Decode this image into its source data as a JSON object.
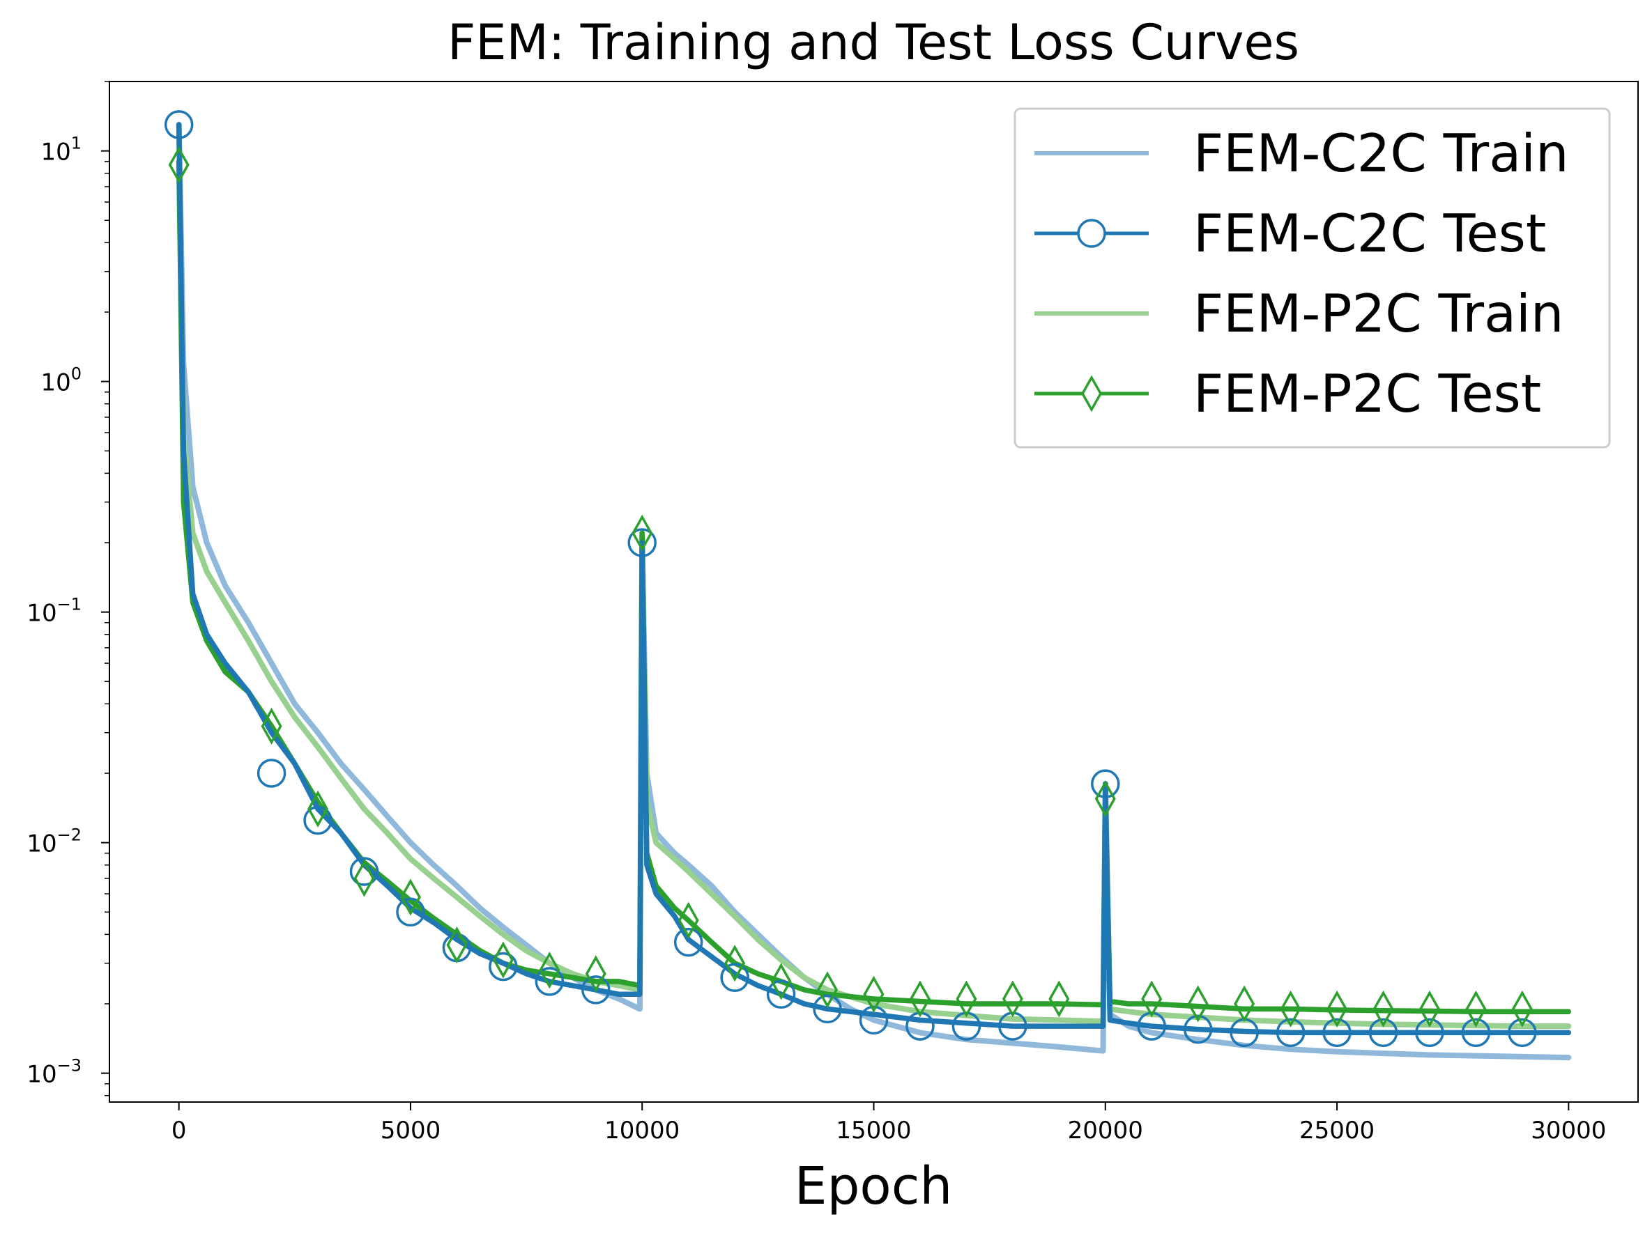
{
  "chart_data": {
    "type": "line",
    "title": "FEM: Training and Test Loss Curves",
    "xlabel": "Epoch",
    "ylabel": "",
    "xlim": [
      -1500,
      31500
    ],
    "ylim": [
      0.00075,
      20
    ],
    "yscale": "log",
    "x_ticks": [
      0,
      5000,
      10000,
      15000,
      20000,
      25000,
      30000
    ],
    "x_tick_labels": [
      "0",
      "5000",
      "10000",
      "15000",
      "20000",
      "25000",
      "30000"
    ],
    "y_ticks": [
      {
        "value": 10,
        "base": "10",
        "exp": "1"
      },
      {
        "value": 1,
        "base": "10",
        "exp": "0"
      },
      {
        "value": 0.1,
        "base": "10",
        "exp": "−1"
      },
      {
        "value": 0.01,
        "base": "10",
        "exp": "−2"
      },
      {
        "value": 0.001,
        "base": "10",
        "exp": "−3"
      }
    ],
    "legend_position": "top-right",
    "series": [
      {
        "name": "FEM-C2C Train",
        "color": "#8fb8da",
        "marker": "none",
        "points": [
          [
            0,
            13
          ],
          [
            100,
            1.2
          ],
          [
            300,
            0.35
          ],
          [
            600,
            0.2
          ],
          [
            1000,
            0.13
          ],
          [
            1500,
            0.09
          ],
          [
            2000,
            0.06
          ],
          [
            2500,
            0.04
          ],
          [
            3000,
            0.03
          ],
          [
            3500,
            0.022
          ],
          [
            4000,
            0.017
          ],
          [
            4500,
            0.013
          ],
          [
            5000,
            0.01
          ],
          [
            5500,
            0.008
          ],
          [
            6000,
            0.0065
          ],
          [
            6500,
            0.0052
          ],
          [
            7000,
            0.0043
          ],
          [
            7500,
            0.0036
          ],
          [
            8000,
            0.003
          ],
          [
            8500,
            0.0026
          ],
          [
            9000,
            0.0023
          ],
          [
            9500,
            0.0021
          ],
          [
            9950,
            0.0019
          ],
          [
            10000,
            0.2
          ],
          [
            10100,
            0.02
          ],
          [
            10300,
            0.011
          ],
          [
            10700,
            0.009
          ],
          [
            11000,
            0.008
          ],
          [
            11500,
            0.0065
          ],
          [
            12000,
            0.005
          ],
          [
            12500,
            0.004
          ],
          [
            13000,
            0.0032
          ],
          [
            13500,
            0.0026
          ],
          [
            14000,
            0.0022
          ],
          [
            14500,
            0.0019
          ],
          [
            15000,
            0.0017
          ],
          [
            16000,
            0.0015
          ],
          [
            17000,
            0.0014
          ],
          [
            18000,
            0.00135
          ],
          [
            19000,
            0.0013
          ],
          [
            19950,
            0.00125
          ],
          [
            20000,
            0.018
          ],
          [
            20100,
            0.0018
          ],
          [
            20500,
            0.0016
          ],
          [
            21000,
            0.0015
          ],
          [
            22000,
            0.0014
          ],
          [
            23000,
            0.00132
          ],
          [
            24000,
            0.00127
          ],
          [
            25000,
            0.00124
          ],
          [
            26000,
            0.00122
          ],
          [
            27000,
            0.0012
          ],
          [
            28000,
            0.00119
          ],
          [
            29000,
            0.00118
          ],
          [
            30000,
            0.00117
          ]
        ]
      },
      {
        "name": "FEM-C2C Test",
        "color": "#1f77b4",
        "marker": "circle",
        "points": [
          [
            0,
            13
          ],
          [
            100,
            0.5
          ],
          [
            300,
            0.12
          ],
          [
            600,
            0.08
          ],
          [
            1000,
            0.06
          ],
          [
            1500,
            0.045
          ],
          [
            2000,
            0.03
          ],
          [
            2500,
            0.022
          ],
          [
            3000,
            0.014
          ],
          [
            3500,
            0.011
          ],
          [
            4000,
            0.008
          ],
          [
            4500,
            0.0065
          ],
          [
            5000,
            0.0052
          ],
          [
            5500,
            0.0045
          ],
          [
            6000,
            0.0038
          ],
          [
            6500,
            0.0033
          ],
          [
            7000,
            0.003
          ],
          [
            7500,
            0.0027
          ],
          [
            8000,
            0.0025
          ],
          [
            8500,
            0.0024
          ],
          [
            9000,
            0.0023
          ],
          [
            9500,
            0.0022
          ],
          [
            9950,
            0.0022
          ],
          [
            10000,
            0.2
          ],
          [
            10100,
            0.008
          ],
          [
            10300,
            0.006
          ],
          [
            10700,
            0.0048
          ],
          [
            11000,
            0.0038
          ],
          [
            11500,
            0.0032
          ],
          [
            12000,
            0.0027
          ],
          [
            12500,
            0.0024
          ],
          [
            13000,
            0.0022
          ],
          [
            13500,
            0.002
          ],
          [
            14000,
            0.0019
          ],
          [
            15000,
            0.0018
          ],
          [
            16000,
            0.0017
          ],
          [
            17000,
            0.00165
          ],
          [
            18000,
            0.0016
          ],
          [
            19000,
            0.0016
          ],
          [
            19950,
            0.0016
          ],
          [
            20000,
            0.018
          ],
          [
            20100,
            0.0017
          ],
          [
            20500,
            0.00165
          ],
          [
            21000,
            0.0016
          ],
          [
            22000,
            0.00155
          ],
          [
            23000,
            0.00152
          ],
          [
            24000,
            0.0015
          ],
          [
            25000,
            0.0015
          ],
          [
            26000,
            0.0015
          ],
          [
            27000,
            0.0015
          ],
          [
            28000,
            0.0015
          ],
          [
            29000,
            0.0015
          ],
          [
            30000,
            0.0015
          ]
        ],
        "marker_points": [
          [
            0,
            13
          ],
          [
            2000,
            0.02
          ],
          [
            3000,
            0.0125
          ],
          [
            4000,
            0.0075
          ],
          [
            5000,
            0.005
          ],
          [
            6000,
            0.0035
          ],
          [
            7000,
            0.0029
          ],
          [
            8000,
            0.0025
          ],
          [
            9000,
            0.0023
          ],
          [
            10000,
            0.2
          ],
          [
            11000,
            0.0037
          ],
          [
            12000,
            0.0026
          ],
          [
            13000,
            0.0022
          ],
          [
            14000,
            0.0019
          ],
          [
            15000,
            0.0017
          ],
          [
            16000,
            0.0016
          ],
          [
            17000,
            0.0016
          ],
          [
            18000,
            0.0016
          ],
          [
            20000,
            0.018
          ],
          [
            21000,
            0.0016
          ],
          [
            22000,
            0.00155
          ],
          [
            23000,
            0.0015
          ],
          [
            24000,
            0.0015
          ],
          [
            25000,
            0.0015
          ],
          [
            26000,
            0.0015
          ],
          [
            27000,
            0.0015
          ],
          [
            28000,
            0.0015
          ],
          [
            29000,
            0.0015
          ]
        ]
      },
      {
        "name": "FEM-P2C Train",
        "color": "#98d08f",
        "marker": "none",
        "points": [
          [
            0,
            9
          ],
          [
            100,
            0.6
          ],
          [
            300,
            0.22
          ],
          [
            600,
            0.15
          ],
          [
            1000,
            0.11
          ],
          [
            1500,
            0.075
          ],
          [
            2000,
            0.05
          ],
          [
            2500,
            0.035
          ],
          [
            3000,
            0.026
          ],
          [
            3500,
            0.019
          ],
          [
            4000,
            0.014
          ],
          [
            4500,
            0.011
          ],
          [
            5000,
            0.0085
          ],
          [
            5500,
            0.007
          ],
          [
            6000,
            0.0058
          ],
          [
            6500,
            0.0048
          ],
          [
            7000,
            0.004
          ],
          [
            7500,
            0.0034
          ],
          [
            8000,
            0.003
          ],
          [
            8500,
            0.0027
          ],
          [
            9000,
            0.0025
          ],
          [
            9500,
            0.0024
          ],
          [
            9950,
            0.0023
          ],
          [
            10000,
            0.22
          ],
          [
            10100,
            0.015
          ],
          [
            10300,
            0.01
          ],
          [
            10700,
            0.0085
          ],
          [
            11000,
            0.0075
          ],
          [
            11500,
            0.006
          ],
          [
            12000,
            0.0048
          ],
          [
            12500,
            0.0038
          ],
          [
            13000,
            0.0031
          ],
          [
            13500,
            0.0026
          ],
          [
            14000,
            0.0023
          ],
          [
            15000,
            0.002
          ],
          [
            16000,
            0.00185
          ],
          [
            17000,
            0.00178
          ],
          [
            18000,
            0.00172
          ],
          [
            19000,
            0.0017
          ],
          [
            19950,
            0.00168
          ],
          [
            20000,
            0.016
          ],
          [
            20100,
            0.0019
          ],
          [
            20500,
            0.00185
          ],
          [
            21000,
            0.0018
          ],
          [
            22000,
            0.00175
          ],
          [
            23000,
            0.0017
          ],
          [
            24000,
            0.00167
          ],
          [
            25000,
            0.00165
          ],
          [
            26000,
            0.00163
          ],
          [
            27000,
            0.00162
          ],
          [
            28000,
            0.00161
          ],
          [
            29000,
            0.0016
          ],
          [
            30000,
            0.0016
          ]
        ]
      },
      {
        "name": "FEM-P2C Test",
        "color": "#2ca02c",
        "marker": "diamond",
        "points": [
          [
            0,
            9
          ],
          [
            100,
            0.3
          ],
          [
            300,
            0.11
          ],
          [
            600,
            0.075
          ],
          [
            1000,
            0.055
          ],
          [
            1500,
            0.045
          ],
          [
            2000,
            0.032
          ],
          [
            2500,
            0.022
          ],
          [
            3000,
            0.015
          ],
          [
            3500,
            0.011
          ],
          [
            4000,
            0.0082
          ],
          [
            4500,
            0.0068
          ],
          [
            5000,
            0.0056
          ],
          [
            5500,
            0.0047
          ],
          [
            6000,
            0.004
          ],
          [
            6500,
            0.0034
          ],
          [
            7000,
            0.003
          ],
          [
            7500,
            0.0028
          ],
          [
            8000,
            0.0027
          ],
          [
            8500,
            0.0026
          ],
          [
            9000,
            0.0025
          ],
          [
            9500,
            0.0025
          ],
          [
            9950,
            0.0024
          ],
          [
            10000,
            0.22
          ],
          [
            10100,
            0.009
          ],
          [
            10300,
            0.0065
          ],
          [
            10700,
            0.0052
          ],
          [
            11000,
            0.0046
          ],
          [
            11500,
            0.0037
          ],
          [
            12000,
            0.003
          ],
          [
            12500,
            0.0027
          ],
          [
            13000,
            0.0025
          ],
          [
            13500,
            0.0023
          ],
          [
            14000,
            0.0022
          ],
          [
            15000,
            0.0021
          ],
          [
            16000,
            0.00205
          ],
          [
            17000,
            0.002
          ],
          [
            18000,
            0.002
          ],
          [
            19000,
            0.002
          ],
          [
            19950,
            0.00198
          ],
          [
            20000,
            0.016
          ],
          [
            20100,
            0.00205
          ],
          [
            20500,
            0.002
          ],
          [
            21000,
            0.002
          ],
          [
            22000,
            0.00195
          ],
          [
            23000,
            0.0019
          ],
          [
            24000,
            0.0019
          ],
          [
            25000,
            0.00188
          ],
          [
            26000,
            0.00187
          ],
          [
            27000,
            0.00186
          ],
          [
            28000,
            0.00185
          ],
          [
            29000,
            0.00185
          ],
          [
            30000,
            0.00185
          ]
        ],
        "marker_points": [
          [
            0,
            8.7
          ],
          [
            2000,
            0.032
          ],
          [
            3000,
            0.014
          ],
          [
            4000,
            0.007
          ],
          [
            5000,
            0.0058
          ],
          [
            6000,
            0.0036
          ],
          [
            7000,
            0.0031
          ],
          [
            8000,
            0.0028
          ],
          [
            9000,
            0.0027
          ],
          [
            10000,
            0.22
          ],
          [
            11000,
            0.0046
          ],
          [
            12000,
            0.003
          ],
          [
            13000,
            0.0025
          ],
          [
            14000,
            0.0023
          ],
          [
            15000,
            0.0022
          ],
          [
            16000,
            0.0021
          ],
          [
            17000,
            0.0021
          ],
          [
            18000,
            0.0021
          ],
          [
            19000,
            0.0021
          ],
          [
            20000,
            0.0155
          ],
          [
            21000,
            0.0021
          ],
          [
            22000,
            0.002
          ],
          [
            23000,
            0.002
          ],
          [
            24000,
            0.0019
          ],
          [
            25000,
            0.0019
          ],
          [
            26000,
            0.0019
          ],
          [
            27000,
            0.0019
          ],
          [
            28000,
            0.0019
          ],
          [
            29000,
            0.0019
          ]
        ]
      }
    ]
  }
}
